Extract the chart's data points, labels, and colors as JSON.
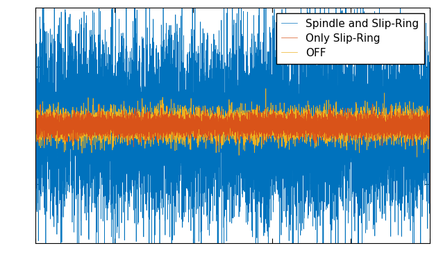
{
  "title": "",
  "legend_labels": [
    "Spindle and Slip-Ring",
    "Only Slip-Ring",
    "OFF"
  ],
  "line_colors": [
    "#0072BD",
    "#D95319",
    "#EDB120"
  ],
  "n_points": 10000,
  "blue_amplitude": 1.5,
  "orange_amplitude": 0.28,
  "red_amplitude": 0.2,
  "ylim": [
    -4.0,
    4.0
  ],
  "xlim": [
    0,
    10000
  ],
  "legend_fontsize": 11,
  "background_color": "#ffffff",
  "axes_linewidth": 0.8,
  "seed": 42,
  "xtick_positions": [
    0,
    2000,
    4000,
    6000,
    8000,
    10000
  ],
  "ytick_positions": [
    -2,
    0,
    2
  ],
  "ytick_labels": [
    "",
    "",
    ""
  ]
}
